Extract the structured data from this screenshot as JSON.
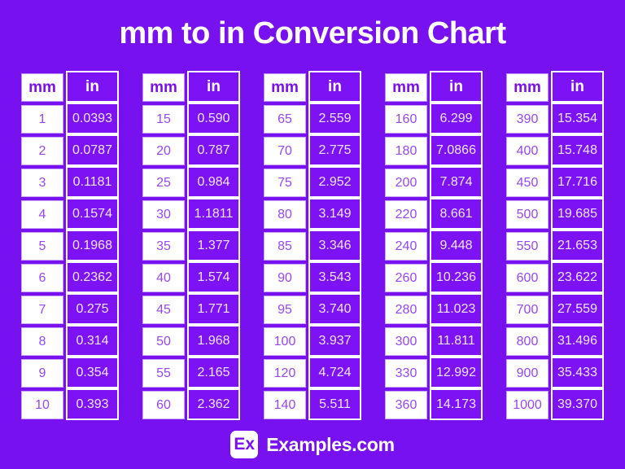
{
  "page": {
    "title": "mm to in Conversion Chart"
  },
  "footer": {
    "logo_text": "Ex",
    "site_name": "Examples.com"
  },
  "colors": {
    "background": "#7811f0",
    "in_cell_fill": "#7d12f4",
    "mm_cell_fill": "#ffffff",
    "header_text_purple": "#7a11ec",
    "value_text_purple": "#9548f2",
    "in_value_text": "#f0e6fe",
    "white": "#ffffff"
  },
  "chart_data": {
    "type": "table",
    "title": "mm to in Conversion Chart",
    "columns": [
      "mm",
      "in"
    ],
    "tables": [
      {
        "rows": [
          {
            "mm": "1",
            "in": "0.0393"
          },
          {
            "mm": "2",
            "in": "0.0787"
          },
          {
            "mm": "3",
            "in": "0.1181"
          },
          {
            "mm": "4",
            "in": "0.1574"
          },
          {
            "mm": "5",
            "in": "0.1968"
          },
          {
            "mm": "6",
            "in": "0.2362"
          },
          {
            "mm": "7",
            "in": "0.275"
          },
          {
            "mm": "8",
            "in": "0.314"
          },
          {
            "mm": "9",
            "in": "0.354"
          },
          {
            "mm": "10",
            "in": "0.393"
          }
        ]
      },
      {
        "rows": [
          {
            "mm": "15",
            "in": "0.590"
          },
          {
            "mm": "20",
            "in": "0.787"
          },
          {
            "mm": "25",
            "in": "0.984"
          },
          {
            "mm": "30",
            "in": "1.1811"
          },
          {
            "mm": "35",
            "in": "1.377"
          },
          {
            "mm": "40",
            "in": "1.574"
          },
          {
            "mm": "45",
            "in": "1.771"
          },
          {
            "mm": "50",
            "in": "1.968"
          },
          {
            "mm": "55",
            "in": "2.165"
          },
          {
            "mm": "60",
            "in": "2.362"
          }
        ]
      },
      {
        "rows": [
          {
            "mm": "65",
            "in": "2.559"
          },
          {
            "mm": "70",
            "in": "2.775"
          },
          {
            "mm": "75",
            "in": "2.952"
          },
          {
            "mm": "80",
            "in": "3.149"
          },
          {
            "mm": "85",
            "in": "3.346"
          },
          {
            "mm": "90",
            "in": "3.543"
          },
          {
            "mm": "95",
            "in": "3.740"
          },
          {
            "mm": "100",
            "in": "3.937"
          },
          {
            "mm": "120",
            "in": "4.724"
          },
          {
            "mm": "140",
            "in": "5.511"
          }
        ]
      },
      {
        "rows": [
          {
            "mm": "160",
            "in": "6.299"
          },
          {
            "mm": "180",
            "in": "7.0866"
          },
          {
            "mm": "200",
            "in": "7.874"
          },
          {
            "mm": "220",
            "in": "8.661"
          },
          {
            "mm": "240",
            "in": "9.448"
          },
          {
            "mm": "260",
            "in": "10.236"
          },
          {
            "mm": "280",
            "in": "11.023"
          },
          {
            "mm": "300",
            "in": "11.811"
          },
          {
            "mm": "330",
            "in": "12.992"
          },
          {
            "mm": "360",
            "in": "14.173"
          }
        ]
      },
      {
        "rows": [
          {
            "mm": "390",
            "in": "15.354"
          },
          {
            "mm": "400",
            "in": "15.748"
          },
          {
            "mm": "450",
            "in": "17.716"
          },
          {
            "mm": "500",
            "in": "19.685"
          },
          {
            "mm": "550",
            "in": "21.653"
          },
          {
            "mm": "600",
            "in": "23.622"
          },
          {
            "mm": "700",
            "in": "27.559"
          },
          {
            "mm": "800",
            "in": "31.496"
          },
          {
            "mm": "900",
            "in": "35.433"
          },
          {
            "mm": "1000",
            "in": "39.370"
          }
        ]
      }
    ]
  }
}
